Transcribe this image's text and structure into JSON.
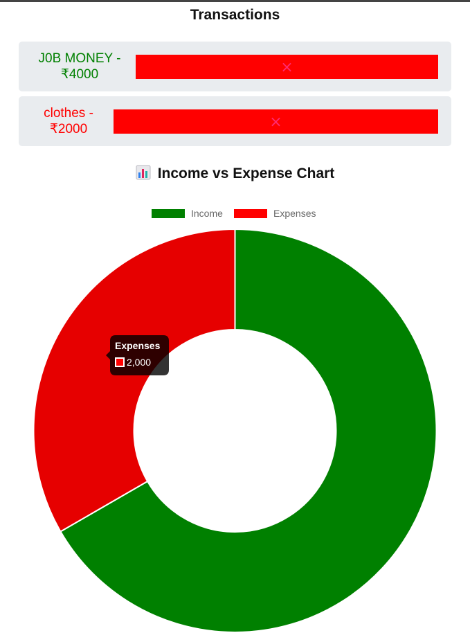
{
  "header": {
    "title": "Transactions"
  },
  "transactions": [
    {
      "label_line1": "J0B MONEY -",
      "label_line2": "₹4000",
      "color": "#008000",
      "delete_icon": "×"
    },
    {
      "label_line1": "clothes -",
      "label_line2": "₹2000",
      "color": "#ff0000",
      "delete_icon": "×"
    }
  ],
  "chart_section": {
    "title": "Income vs Expense Chart",
    "icon": "bar-chart-icon"
  },
  "chart_data": {
    "type": "pie",
    "variant": "doughnut",
    "categories": [
      "Income",
      "Expenses"
    ],
    "values": [
      4000,
      2000
    ],
    "colors": [
      "#008000",
      "#e60000"
    ],
    "legend_colors": [
      "#008000",
      "#ff0000"
    ],
    "legend_position": "top",
    "title": "",
    "tooltip": {
      "title": "Expenses",
      "value": "2,000"
    }
  }
}
